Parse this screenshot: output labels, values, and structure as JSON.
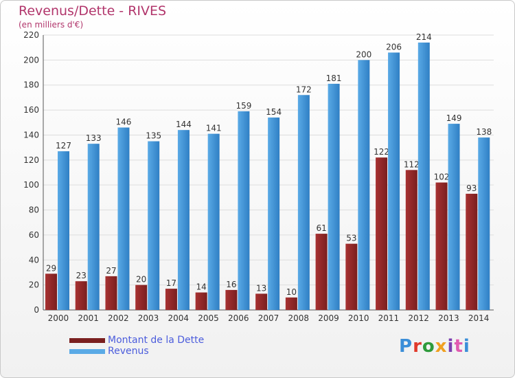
{
  "title": "Revenus/Dette - RIVES",
  "subtitle": "(en milliers d'€)",
  "logo": {
    "text": "Proxiti",
    "letter_colors": [
      "#3b8ed8",
      "#e0392a",
      "#2e9a3b",
      "#f0a020",
      "#7b3fb0",
      "#e05ab0",
      "#3b8ed8"
    ]
  },
  "colors": {
    "dette": "#7a1f1f",
    "dette_light": "#a83232",
    "revenus": "#5aaae6",
    "revenus_dark": "#2f7fc4",
    "axis_text": "#333333",
    "grid": "#dddddd"
  },
  "chart_data": {
    "type": "bar",
    "categories": [
      "2000",
      "2001",
      "2002",
      "2003",
      "2004",
      "2005",
      "2006",
      "2007",
      "2008",
      "2009",
      "2010",
      "2011",
      "2012",
      "2013",
      "2014"
    ],
    "series": [
      {
        "name": "Montant de la Dette",
        "values": [
          29,
          23,
          27,
          20,
          17,
          14,
          16,
          13,
          10,
          61,
          53,
          122,
          112,
          102,
          93
        ]
      },
      {
        "name": "Revenus",
        "values": [
          127,
          133,
          146,
          135,
          144,
          141,
          159,
          154,
          172,
          181,
          200,
          206,
          214,
          149,
          138
        ]
      }
    ],
    "yticks": [
      0,
      20,
      40,
      60,
      80,
      100,
      120,
      140,
      160,
      180,
      200,
      220
    ],
    "ylim": [
      0,
      220
    ],
    "grid": true,
    "legend_position": "bottom-left"
  }
}
